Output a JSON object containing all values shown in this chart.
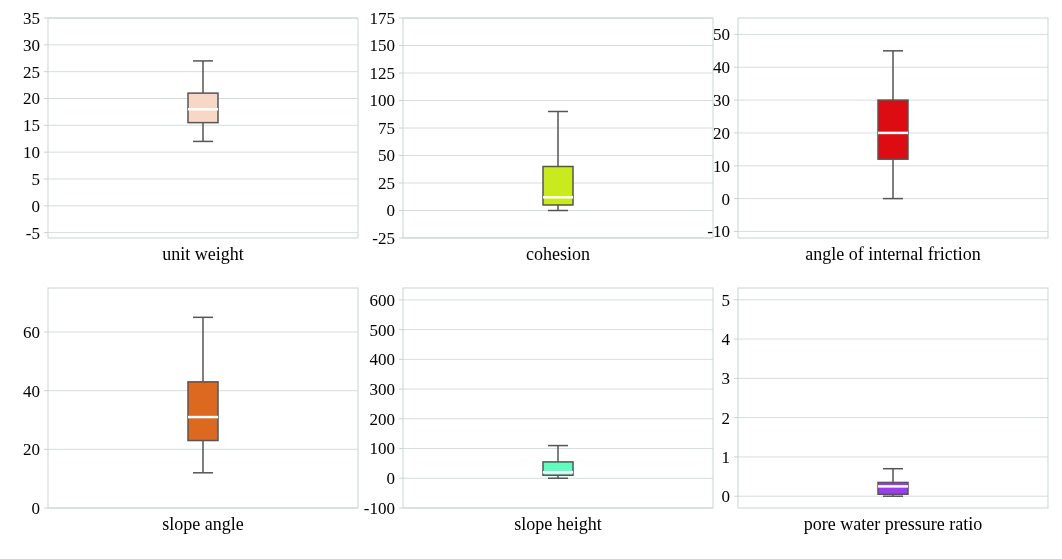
{
  "chart_data": [
    {
      "type": "box",
      "categories": [
        "unit weight"
      ],
      "color": "#f7d8c6",
      "ylim": [
        -6,
        35
      ],
      "yticks": [
        -5,
        0,
        5,
        10,
        15,
        20,
        25,
        30,
        35
      ],
      "grid": "y",
      "boxes": [
        {
          "low": 12,
          "q1": 15.5,
          "median": 18,
          "q3": 21,
          "high": 27
        }
      ]
    },
    {
      "type": "box",
      "categories": [
        "cohesion"
      ],
      "color": "#c8ea1e",
      "ylim": [
        -25,
        175
      ],
      "yticks": [
        -25,
        0,
        25,
        50,
        75,
        100,
        125,
        150,
        175
      ],
      "grid": "y",
      "boxes": [
        {
          "low": 0,
          "q1": 5,
          "median": 12,
          "q3": 40,
          "high": 90
        }
      ]
    },
    {
      "type": "box",
      "categories": [
        "angle of internal friction"
      ],
      "color": "#dc0c12",
      "ylim": [
        -12,
        55
      ],
      "yticks": [
        -10,
        0,
        10,
        20,
        30,
        40,
        50
      ],
      "grid": "y",
      "boxes": [
        {
          "low": 0,
          "q1": 12,
          "median": 20,
          "q3": 30,
          "high": 45
        }
      ]
    },
    {
      "type": "box",
      "categories": [
        "slope angle"
      ],
      "color": "#dd6820",
      "ylim": [
        0,
        75
      ],
      "yticks": [
        0,
        20,
        40,
        60
      ],
      "grid": "y",
      "boxes": [
        {
          "low": 12,
          "q1": 23,
          "median": 31,
          "q3": 43,
          "high": 65
        }
      ]
    },
    {
      "type": "box",
      "categories": [
        "slope height"
      ],
      "color": "#60fdbf",
      "ylim": [
        -100,
        640
      ],
      "yticks": [
        -100,
        0,
        100,
        200,
        300,
        400,
        500,
        600
      ],
      "grid": "y",
      "boxes": [
        {
          "low": 0,
          "q1": 10,
          "median": 20,
          "q3": 55,
          "high": 110
        }
      ]
    },
    {
      "type": "box",
      "categories": [
        "pore water pressure ratio"
      ],
      "color": "#9b3cf5",
      "ylim": [
        -0.3,
        5.3
      ],
      "yticks": [
        0,
        1,
        2,
        3,
        4,
        5
      ],
      "grid": "y",
      "boxes": [
        {
          "low": 0,
          "q1": 0.05,
          "median": 0.25,
          "q3": 0.35,
          "high": 0.7
        }
      ]
    }
  ]
}
